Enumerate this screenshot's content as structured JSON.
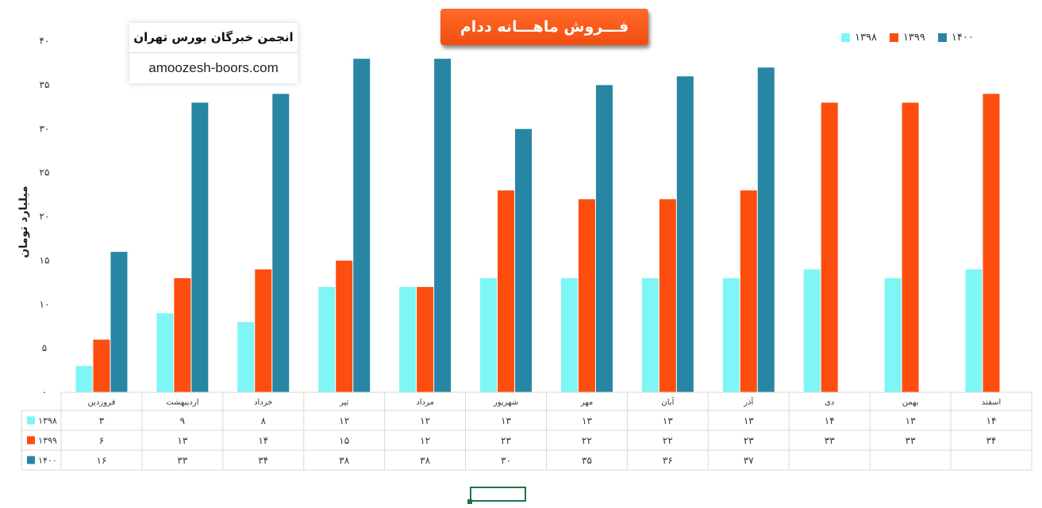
{
  "title": "فـــروش ماهـــانه ددام",
  "brand": {
    "name": "انجمن خبرگان بورس تهران",
    "website": "amoozesh-boors.com"
  },
  "colors": {
    "1398": "#7ff6f6",
    "1399": "#fd4e10",
    "1400": "#2886a5",
    "grid": "#d9d9d9",
    "selection": "#217346"
  },
  "chart_data": {
    "type": "bar",
    "title": "فـــروش ماهـــانه ددام",
    "ylabel": "میلیارد تومان",
    "ylim": [
      0,
      40
    ],
    "yticks": [
      "۰",
      "۵",
      "۱۰",
      "۱۵",
      "۲۰",
      "۲۵",
      "۳۰",
      "۳۵",
      "۴۰"
    ],
    "legend_position": "top-right",
    "categories": [
      "فروردین",
      "اردیبهشت",
      "خرداد",
      "تیر",
      "مرداد",
      "شهریور",
      "مهر",
      "آبان",
      "آذر",
      "دی",
      "بهمن",
      "اسفند"
    ],
    "series": [
      {
        "name": "۱۳۹۸",
        "color": "#7ff6f6",
        "values": [
          3,
          9,
          8,
          12,
          12,
          13,
          13,
          13,
          13,
          14,
          13,
          14
        ],
        "labels": [
          "۳",
          "۹",
          "۸",
          "۱۲",
          "۱۲",
          "۱۳",
          "۱۳",
          "۱۳",
          "۱۳",
          "۱۴",
          "۱۳",
          "۱۴"
        ]
      },
      {
        "name": "۱۳۹۹",
        "color": "#fd4e10",
        "values": [
          6,
          13,
          14,
          15,
          12,
          23,
          22,
          22,
          23,
          33,
          33,
          34
        ],
        "labels": [
          "۶",
          "۱۳",
          "۱۴",
          "۱۵",
          "۱۲",
          "۲۳",
          "۲۲",
          "۲۲",
          "۲۳",
          "۳۳",
          "۳۳",
          "۳۴"
        ]
      },
      {
        "name": "۱۴۰۰",
        "color": "#2886a5",
        "values": [
          16,
          33,
          34,
          38,
          38,
          30,
          35,
          36,
          37,
          null,
          null,
          null
        ],
        "labels": [
          "۱۶",
          "۳۳",
          "۳۴",
          "۳۸",
          "۳۸",
          "۳۰",
          "۳۵",
          "۳۶",
          "۳۷",
          "",
          "",
          ""
        ]
      }
    ]
  }
}
